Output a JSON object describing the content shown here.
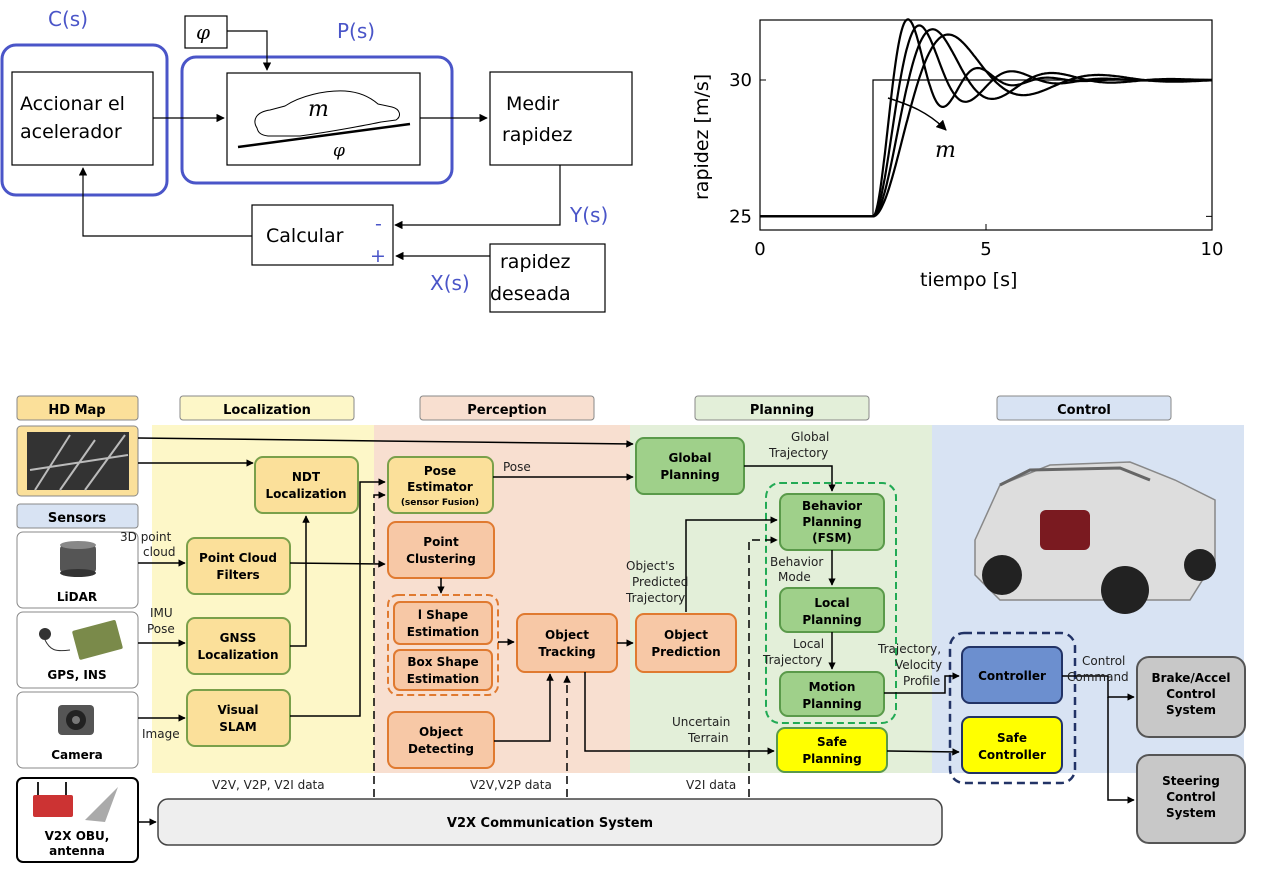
{
  "control_loop": {
    "c_label": "C(s)",
    "p_label": "P(s)",
    "phi_symbol": "φ",
    "m_symbol": "m",
    "accelerator_line1": "Accionar el",
    "accelerator_line2": "acelerador",
    "measure_line1": "Medir",
    "measure_line2": "rapidez",
    "calc_label": "Calcular",
    "minus_sign": "-",
    "plus_sign": "+",
    "y_label": "Y(s)",
    "x_label": "X(s)",
    "desired_line1": "rapidez",
    "desired_line2": "deseada",
    "accent_color": "#4a55c8"
  },
  "chart_data": {
    "type": "line",
    "ylabel": "rapidez [m/s]",
    "xlabel": "tiempo [s]",
    "xlim": [
      0,
      10
    ],
    "ylim": [
      24.5,
      32.2
    ],
    "xticks": [
      0,
      5,
      10
    ],
    "yticks": [
      25,
      30
    ],
    "step": {
      "t0": 2.5,
      "from": 25,
      "to": 30
    },
    "annotation": "m",
    "series": [
      {
        "wn": 4.2,
        "zeta": 0.25
      },
      {
        "wn": 3.2,
        "zeta": 0.28
      },
      {
        "wn": 2.5,
        "zeta": 0.3
      },
      {
        "wn": 2.0,
        "zeta": 0.33
      }
    ]
  },
  "av_diagram": {
    "headers": {
      "hdmap": "HD Map",
      "localization": "Localization",
      "perception": "Perception",
      "planning": "Planning",
      "control": "Control",
      "sensors": "Sensors"
    },
    "sensors": {
      "lidar": "LiDAR",
      "gps": "GPS, INS",
      "camera": "Camera",
      "v2x_line1": "V2X OBU,",
      "v2x_line2": "antenna"
    },
    "localization": {
      "ndt1": "NDT",
      "ndt2": "Localization",
      "pcf1": "Point Cloud",
      "pcf2": "Filters",
      "gnss1": "GNSS",
      "gnss2": "Localization",
      "vs1": "Visual",
      "vs2": "SLAM"
    },
    "perception": {
      "pose1": "Pose",
      "pose2": "Estimator",
      "pose3": "(sensor Fusion)",
      "pc1": "Point",
      "pc2": "Clustering",
      "is1": "l Shape",
      "is2": "Estimation",
      "bs1": "Box Shape",
      "bs2": "Estimation",
      "od1": "Object",
      "od2": "Detecting",
      "ot1": "Object",
      "ot2": "Tracking"
    },
    "planning": {
      "op1": "Object",
      "op2": "Prediction",
      "gp1": "Global",
      "gp2": "Planning",
      "bp1": "Behavior",
      "bp2": "Planning",
      "bp3": "(FSM)",
      "lp1": "Local",
      "lp2": "Planning",
      "mp1": "Motion",
      "mp2": "Planning",
      "sp1": "Safe",
      "sp2": "Planning"
    },
    "control": {
      "ctrl": "Controller",
      "sc1": "Safe",
      "sc2": "Controller",
      "ba1": "Brake/Accel",
      "ba2": "Control",
      "ba3": "System",
      "st1": "Steering",
      "st2": "Control",
      "st3": "System"
    },
    "labels": {
      "pt1": "3D point",
      "pt2": "cloud",
      "imu1": "IMU",
      "imu2": "Pose",
      "image": "Image",
      "pose": "Pose",
      "gt1": "Global",
      "gt2": "Trajectory",
      "opt1": "Object's",
      "opt2": "Predicted",
      "opt3": "Trajectory",
      "bm1": "Behavior",
      "bm2": "Mode",
      "lt1": "Local",
      "lt2": "Trajectory",
      "tvp1": "Trajectory,",
      "tvp2": "Velocity",
      "tvp3": "Profile",
      "cc1": "Control",
      "cc2": "Command",
      "ut1": "Uncertain",
      "ut2": "Terrain",
      "v2v_all": "V2V, V2P, V2I data",
      "v2v_vp": "V2V,V2P data",
      "v2i": "V2I data",
      "v2x_system": "V2X Communication System"
    },
    "colors": {
      "localization_bg": "#fdf7c8",
      "perception_bg": "#f8dfd0",
      "planning_bg": "#e3efd9",
      "control_bg": "#d8e3f3",
      "yellow_box": "#fbe09a",
      "orange_box": "#f7c8a6",
      "green_box": "#9fd08a",
      "blue_box": "#6c8fcf",
      "safe_yellow": "#ffff00",
      "gray_box": "#c8c8c8"
    }
  }
}
